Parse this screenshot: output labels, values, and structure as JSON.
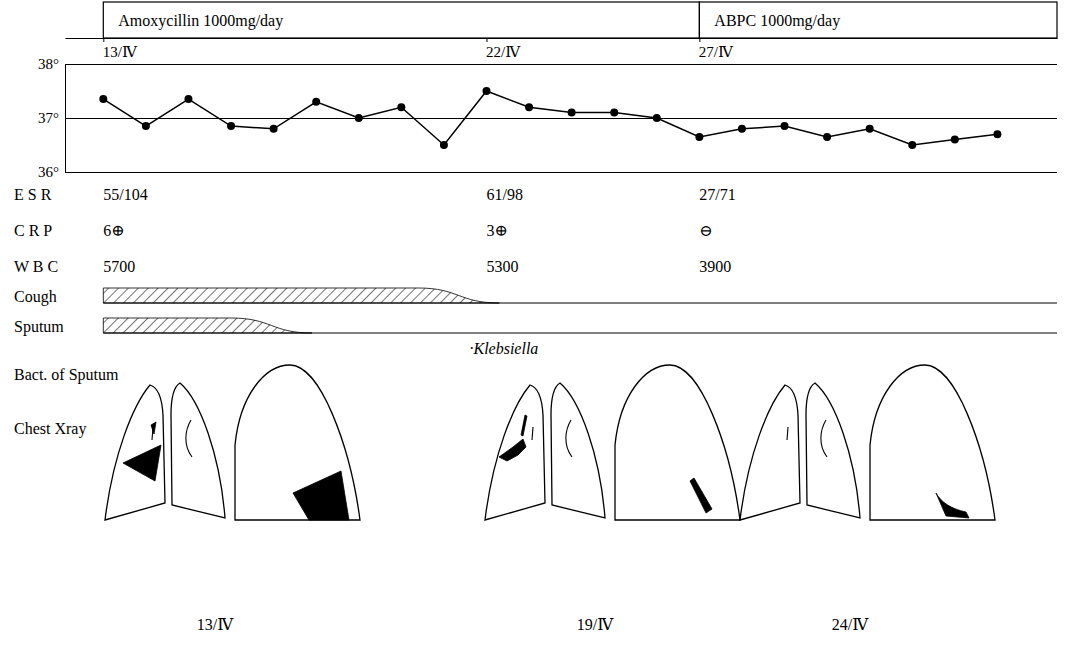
{
  "chart_data": {
    "type": "line",
    "x": [
      0,
      1,
      2,
      3,
      4,
      5,
      6,
      7,
      8,
      9,
      10,
      11,
      12,
      13,
      14,
      15,
      16,
      17,
      18,
      19,
      20,
      21
    ],
    "values": [
      37.35,
      36.85,
      37.35,
      36.85,
      36.8,
      37.3,
      37.0,
      37.2,
      36.5,
      37.5,
      37.2,
      37.1,
      37.1,
      37.0,
      36.65,
      36.8,
      36.85,
      36.65,
      36.8,
      36.5,
      36.6,
      36.7
    ],
    "color": "#000000",
    "marker": "circle",
    "xlim": [
      -0.9,
      22.4
    ],
    "xticks": [
      {
        "value": 0,
        "label": "13/Ⅳ"
      },
      {
        "value": 9,
        "label": "22/Ⅳ"
      },
      {
        "value": 14,
        "label": "27/Ⅳ"
      }
    ],
    "ylim": [
      36,
      38
    ],
    "yticks": [
      {
        "value": 36,
        "label": "36°"
      },
      {
        "value": 37,
        "label": "37°"
      },
      {
        "value": 38,
        "label": "38°"
      }
    ],
    "grid": true,
    "medications": [
      {
        "name": "Amoxycillin 1000mg/day",
        "start": 0,
        "end": 14
      },
      {
        "name": "ABPC 1000mg/day",
        "start": 14,
        "end": 22.4
      }
    ],
    "labs": {
      "days": [
        0,
        9,
        14
      ],
      "rows": [
        {
          "name": "E S R",
          "values": [
            "55/104",
            "61/98",
            "27/71"
          ]
        },
        {
          "name": "C R P",
          "values": [
            "6⊕",
            "3⊕",
            "⊖"
          ]
        },
        {
          "name": "W B C",
          "values": [
            5700,
            5300,
            3900
          ]
        }
      ]
    },
    "symptoms": [
      {
        "name": "Cough",
        "start": 0,
        "taper_start": 7.4,
        "end": 9.3
      },
      {
        "name": "Sputum",
        "start": 0,
        "taper_start": 3,
        "end": 4.9
      }
    ],
    "bacteria": {
      "label": "Bact. of Sputum",
      "results": [
        {
          "day": 8.6,
          "text": "·Klebsiella"
        }
      ]
    },
    "xray": {
      "label": "Chest Xray",
      "dates": [
        "13/Ⅳ",
        "19/Ⅳ",
        "24/Ⅳ"
      ]
    }
  }
}
